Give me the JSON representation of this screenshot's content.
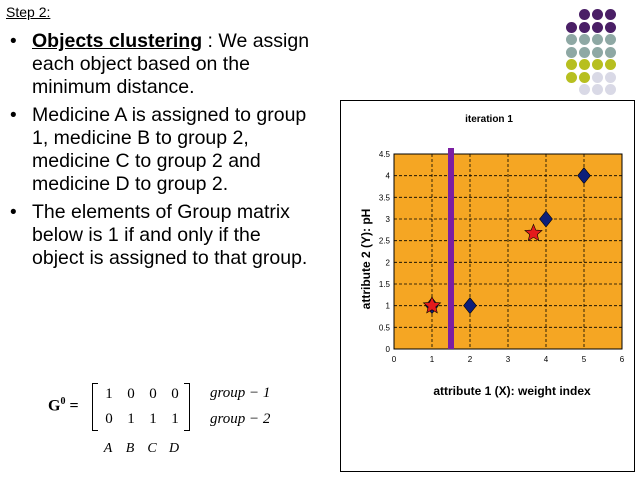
{
  "header": {
    "step_label": "Step 2:"
  },
  "bullets": [
    {
      "keyword": "Objects clustering",
      "text": " : We assign each object  based on the minimum distance."
    },
    {
      "text": "Medicine A is assigned to group 1, medicine B to group 2, medicine C to group 2 and medicine D to group 2."
    },
    {
      "text": "The elements of Group matrix below is 1 if and only if the object is assigned to that group."
    }
  ],
  "decor": {
    "dot_colors": [
      "#7b7f86",
      "#4a1f66",
      "#8ea8a4",
      "#b7bf20",
      "#d9d9e6"
    ]
  },
  "matrix": {
    "label": "G",
    "superscript": "0",
    "equals": "=",
    "rows": [
      [
        "1",
        "0",
        "0",
        "0"
      ],
      [
        "0",
        "1",
        "1",
        "1"
      ]
    ],
    "row_labels": [
      "group − 1",
      "group − 2"
    ],
    "col_labels": [
      "A",
      "B",
      "C",
      "D"
    ]
  },
  "chart_data": {
    "type": "scatter",
    "title": "iteration 1",
    "xlabel": "attribute 1 (X): weight index",
    "ylabel": "attribute 2 (Y): pH",
    "xlim": [
      0,
      6
    ],
    "ylim": [
      0,
      4.5
    ],
    "x_ticks": [
      "0",
      "1",
      "2",
      "3",
      "4",
      "5",
      "6"
    ],
    "y_ticks": [
      "0",
      "0.5",
      "1",
      "1.5",
      "2",
      "2.5",
      "3",
      "3.5",
      "4",
      "4.5"
    ],
    "grid": true,
    "grid_style": "dashed",
    "background": "#f5a623",
    "series": [
      {
        "marker": "diamond",
        "color": "#0d1f7a",
        "points": [
          [
            1,
            1
          ],
          [
            2,
            1
          ],
          [
            4,
            3
          ],
          [
            5,
            4
          ]
        ]
      },
      {
        "marker": "star",
        "color": "#e41a1c",
        "points": [
          [
            1,
            1
          ],
          [
            3.67,
            2.67
          ]
        ]
      }
    ],
    "separator": {
      "x": 1.5,
      "color": "#7b1fa2"
    }
  }
}
